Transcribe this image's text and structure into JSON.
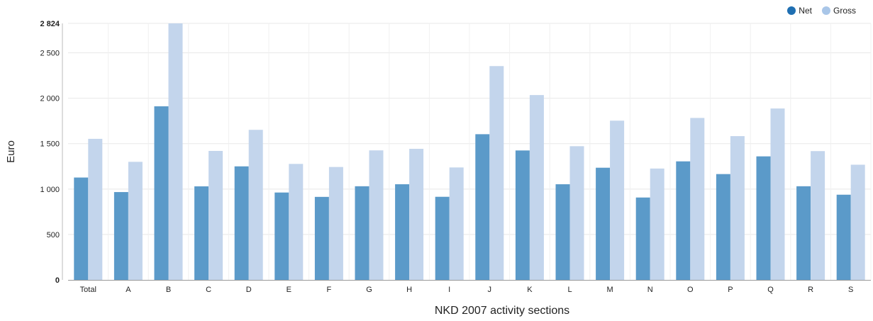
{
  "chart_data": {
    "type": "bar",
    "xlabel": "NKD 2007 activity sections",
    "ylabel": "Euro",
    "ylim": [
      0,
      2824
    ],
    "yticks": [
      {
        "value": 0,
        "label": "0",
        "bold": true
      },
      {
        "value": 500,
        "label": "500",
        "bold": false
      },
      {
        "value": 1000,
        "label": "1 000",
        "bold": false
      },
      {
        "value": 1500,
        "label": "1 500",
        "bold": false
      },
      {
        "value": 2000,
        "label": "2 000",
        "bold": false
      },
      {
        "value": 2500,
        "label": "2 500",
        "bold": false
      },
      {
        "value": 2824,
        "label": "2 824",
        "bold": true
      }
    ],
    "grid": true,
    "legend_position": "top-right",
    "categories": [
      "Total",
      "A",
      "B",
      "C",
      "D",
      "E",
      "F",
      "G",
      "H",
      "I",
      "J",
      "K",
      "L",
      "M",
      "N",
      "O",
      "P",
      "Q",
      "R",
      "S"
    ],
    "series": [
      {
        "name": "Net",
        "color": "#5b9ac9",
        "values": [
          1127,
          967,
          1911,
          1030,
          1250,
          962,
          914,
          1031,
          1053,
          915,
          1604,
          1425,
          1053,
          1235,
          907,
          1305,
          1165,
          1360,
          1031,
          938
        ]
      },
      {
        "name": "Gross",
        "color": "#c3d5ec",
        "values": [
          1553,
          1300,
          2824,
          1420,
          1652,
          1277,
          1243,
          1426,
          1443,
          1238,
          2354,
          2035,
          1472,
          1753,
          1226,
          1783,
          1583,
          1887,
          1418,
          1268
        ]
      }
    ]
  },
  "legend": {
    "net_label": "Net",
    "gross_label": "Gross",
    "net_color": "#1f6fb2",
    "gross_color": "#a9c6e8"
  }
}
